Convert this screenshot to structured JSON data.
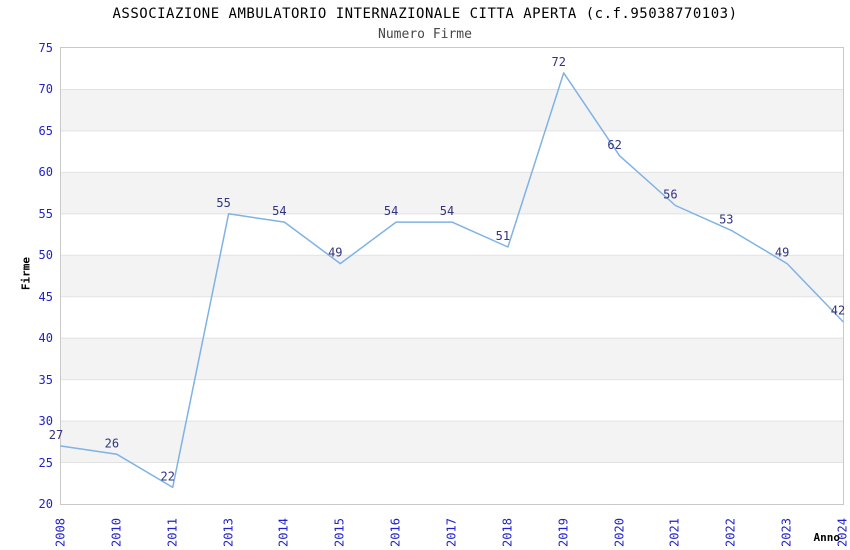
{
  "header": {
    "title": "ASSOCIAZIONE AMBULATORIO INTERNAZIONALE CITTA APERTA (c.f.95038770103)",
    "subtitle": "Numero Firme"
  },
  "chart_data": {
    "type": "line",
    "title": "ASSOCIAZIONE AMBULATORIO INTERNAZIONALE CITTA APERTA (c.f.95038770103)",
    "subtitle": "Numero Firme",
    "xlabel": "Anno",
    "ylabel": "Firme",
    "categories": [
      "2008",
      "2010",
      "2011",
      "2013",
      "2014",
      "2015",
      "2016",
      "2017",
      "2018",
      "2019",
      "2020",
      "2021",
      "2022",
      "2023",
      "2024"
    ],
    "values": [
      27,
      26,
      22,
      55,
      54,
      49,
      54,
      54,
      51,
      72,
      62,
      56,
      53,
      49,
      42
    ],
    "ylim": [
      20,
      75
    ],
    "yticks": [
      20,
      25,
      30,
      35,
      40,
      45,
      50,
      55,
      60,
      65,
      70,
      75
    ],
    "grid": "horizontal-gridlines-with-alternating-bands",
    "legend": "none",
    "point_labels_visible": true,
    "colors": {
      "line": "#7fb2e5",
      "point_label": "#333380",
      "tick_label": "#2222cc",
      "band_fill": "#f3f3f3",
      "grid_line": "#e2e2e2",
      "plot_border": "#c9c9c9",
      "title": "#000000",
      "subtitle": "#474747",
      "axis_title": "#000000"
    }
  }
}
